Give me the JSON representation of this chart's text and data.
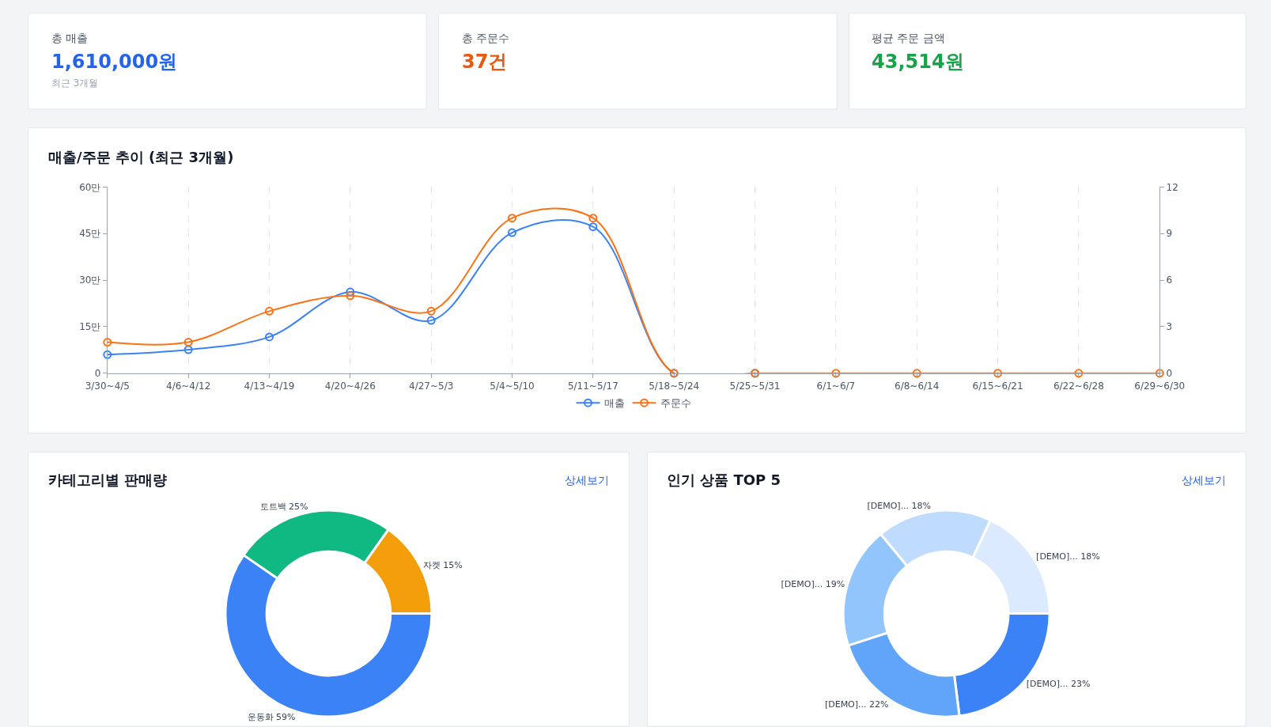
{
  "chart_data": [
    {
      "type": "other",
      "title": "총 매출",
      "subtitle": "1,610,000원",
      "annotations": [
        "최근 3개월"
      ],
      "color": "#2563eb"
    },
    {
      "type": "other",
      "title": "총 주문수",
      "subtitle": "37건",
      "color": "#ea580c"
    },
    {
      "type": "other",
      "title": "평균 주문 금액",
      "subtitle": "43,514원",
      "color": "#16a34a"
    },
    {
      "type": "line",
      "title": "매출/주문 추이 (최근 3개월)",
      "categories": [
        "3/30~4/5",
        "4/6~4/12",
        "4/13~4/19",
        "4/20~4/26",
        "4/27~5/3",
        "5/4~5/10",
        "5/11~5/17",
        "5/18~5/24",
        "5/25~5/31",
        "6/1~6/7",
        "6/8~6/14",
        "6/15~6/21",
        "6/22~6/28",
        "6/29~6/30"
      ],
      "series": [
        {
          "name": "매출",
          "color": "#3b82f6",
          "values": [
            6,
            7.6,
            11.7,
            26.2,
            17,
            45.3,
            47.2,
            0,
            0,
            null,
            null,
            null,
            null,
            null
          ]
        },
        {
          "name": "주문수",
          "color": "#f97316",
          "axis": "y2",
          "values": [
            2,
            2,
            4,
            5,
            4,
            10,
            10,
            0,
            0,
            0,
            0,
            0,
            0,
            0
          ]
        }
      ],
      "ylim": [
        0,
        60
      ],
      "yticks": [
        0,
        {
          "value": 15,
          "label": "15만"
        },
        {
          "value": 30,
          "label": "30만"
        },
        {
          "value": 45,
          "label": "45만"
        },
        {
          "value": 60,
          "label": "60만"
        }
      ],
      "y2lim": [
        0,
        12
      ],
      "y2ticks": [
        0,
        3,
        6,
        9,
        12
      ],
      "grid": "x",
      "legend": "bottom",
      "marker": "circle",
      "line_style": "solid"
    },
    {
      "type": "donut",
      "title": "카테고리별 판매량",
      "annotations": [
        "상세보기"
      ],
      "categories": [
        "운동화",
        "토트백",
        "자켓"
      ],
      "values": [
        59,
        25,
        15
      ],
      "value_labels": [
        "59%",
        "25%",
        "15%"
      ],
      "colors": [
        "#3b82f6",
        "#10b981",
        "#f59e0b"
      ]
    },
    {
      "type": "donut",
      "title": "인기 상품 TOP 5",
      "annotations": [
        "상세보기"
      ],
      "categories": [
        "[DEMO]...",
        "[DEMO]...",
        "[DEMO]...",
        "[DEMO]...",
        "[DEMO]..."
      ],
      "values": [
        23,
        22,
        19,
        18,
        18
      ],
      "value_labels": [
        "23%",
        "22%",
        "19%",
        "18%",
        "18%"
      ],
      "colors": [
        "#3b82f6",
        "#60a5fa",
        "#93c5fd",
        "#bfdbfe",
        "#dbeafe"
      ]
    }
  ]
}
